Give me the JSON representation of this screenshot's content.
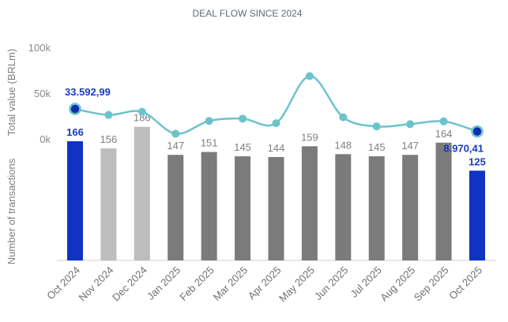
{
  "chart_data": {
    "type": "bar+line",
    "title": "DEAL FLOW SINCE 2024",
    "categories": [
      "Oct 2024",
      "Nov 2024",
      "Dec 2024",
      "Jan 2025",
      "Feb 2025",
      "Mar 2025",
      "Apr 2025",
      "May 2025",
      "Jun 2025",
      "Jul 2025",
      "Aug 2025",
      "Sep 2025",
      "Oct 2025"
    ],
    "line": {
      "name": "Total value (BRLm)",
      "ylabel": "Total value (BRLm)",
      "ylim": [
        0,
        100000
      ],
      "yticks": [
        0,
        50000,
        100000
      ],
      "ytick_labels": [
        "0k",
        "50k",
        "100k"
      ],
      "values": [
        33592.99,
        27000,
        30500,
        6500,
        20500,
        23000,
        18000,
        69500,
        24500,
        14500,
        17000,
        20000,
        8970.41
      ],
      "point_labels": [
        {
          "index": 0,
          "text": "33.592,99"
        },
        {
          "index": 12,
          "text": "8.970,41"
        }
      ],
      "color": "#6dc3cb",
      "highlight_color": "#0b2fb0"
    },
    "bars": {
      "name": "Number of transactions",
      "ylabel": "Number of transactions",
      "values": [
        166,
        156,
        186,
        147,
        151,
        145,
        144,
        159,
        148,
        145,
        147,
        164,
        125
      ],
      "labels": [
        "166",
        "156",
        "186",
        "147",
        "151",
        "145",
        "144",
        "159",
        "148",
        "145",
        "147",
        "164",
        "125"
      ],
      "colors": [
        "#1033c4",
        "#bdbdbd",
        "#bdbdbd",
        "#7b7b7b",
        "#7b7b7b",
        "#7b7b7b",
        "#7b7b7b",
        "#7b7b7b",
        "#7b7b7b",
        "#7b7b7b",
        "#7b7b7b",
        "#7b7b7b",
        "#1033c4"
      ],
      "highlight": [
        true,
        false,
        false,
        false,
        false,
        false,
        false,
        false,
        false,
        false,
        false,
        false,
        true
      ],
      "ylim": [
        0,
        200
      ]
    }
  }
}
